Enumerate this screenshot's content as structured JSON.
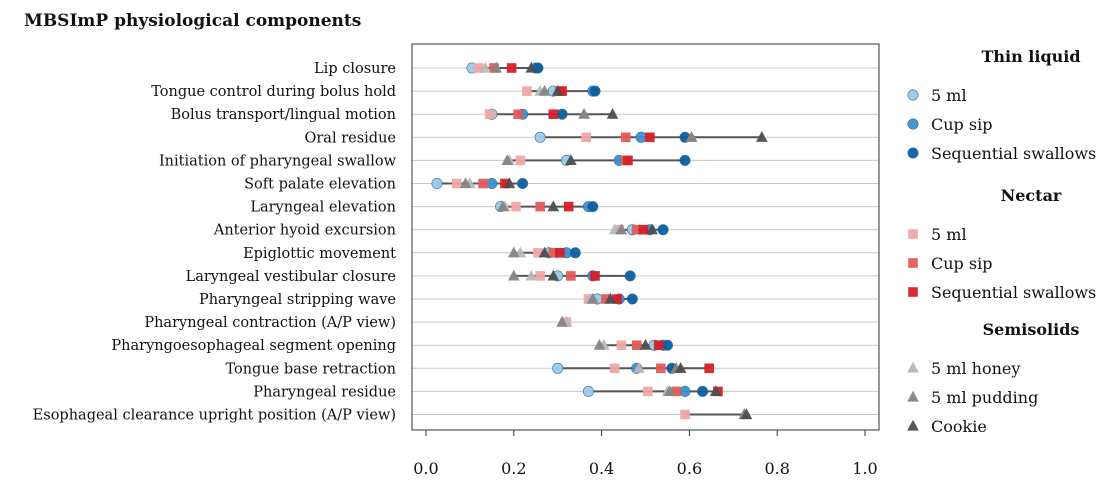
{
  "chart_data": {
    "type": "scatter",
    "title": "MBSImP physiological components",
    "xlim": [
      0.0,
      1.0
    ],
    "x_ticks": [
      "0.0",
      "0.2",
      "0.4",
      "0.6",
      "0.8",
      "1.0"
    ],
    "grid": "horizontal",
    "legend_position": "right",
    "categories": [
      "Lip closure",
      "Tongue control during bolus hold",
      "Bolus transport/lingual motion",
      "Oral residue",
      "Initiation of pharyngeal swallow",
      "Soft palate elevation",
      "Laryngeal elevation",
      "Anterior hyoid excursion",
      "Epiglottic movement",
      "Laryngeal vestibular closure",
      "Pharyngeal stripping wave",
      "Pharyngeal contraction (A/P view)",
      "Pharyngoesophageal segment opening",
      "Tongue base retraction",
      "Pharyngeal residue",
      "Esophageal clearance upright position (A/P view)"
    ],
    "legend_groups": [
      {
        "title": "Thin liquid",
        "entries": [
          "5 ml",
          "Cup sip",
          "Sequential swallows"
        ]
      },
      {
        "title": "Nectar",
        "entries": [
          "5 ml",
          "Cup sip",
          "Sequential swallows"
        ]
      },
      {
        "title": "Semisolids",
        "entries": [
          "5 ml honey",
          "5 ml pudding",
          "Cookie"
        ]
      }
    ],
    "series": [
      {
        "group": "Thin liquid",
        "label": "5 ml",
        "marker": "circle",
        "color": "#9ccbe8",
        "values": [
          0.105,
          0.29,
          0.15,
          0.26,
          0.32,
          0.025,
          0.17,
          0.47,
          0.28,
          0.3,
          0.39,
          null,
          0.52,
          0.3,
          0.37,
          null
        ]
      },
      {
        "group": "Thin liquid",
        "label": "Cup sip",
        "marker": "circle",
        "color": "#3a92cf",
        "values": [
          0.25,
          0.38,
          0.22,
          0.49,
          0.44,
          0.15,
          0.37,
          0.51,
          0.32,
          0.38,
          0.44,
          null,
          0.54,
          0.48,
          0.59,
          null
        ]
      },
      {
        "group": "Thin liquid",
        "label": "Sequential swallows",
        "marker": "circle",
        "color": "#0b5ea0",
        "values": [
          0.255,
          0.385,
          0.31,
          0.59,
          0.59,
          0.22,
          0.38,
          0.54,
          0.34,
          0.465,
          0.47,
          null,
          0.55,
          0.56,
          0.63,
          null
        ]
      },
      {
        "group": "Nectar",
        "label": "5 ml",
        "marker": "square",
        "color": "#f0a6a6",
        "values": [
          0.12,
          0.23,
          0.145,
          0.365,
          0.215,
          0.07,
          0.205,
          0.44,
          0.255,
          0.26,
          0.37,
          0.32,
          0.445,
          0.43,
          0.505,
          0.59
        ]
      },
      {
        "group": "Nectar",
        "label": "Cup sip",
        "marker": "square",
        "color": "#e45a5a",
        "values": [
          0.155,
          0.305,
          0.21,
          0.455,
          0.455,
          0.13,
          0.26,
          0.48,
          0.29,
          0.33,
          0.41,
          null,
          0.48,
          0.535,
          0.57,
          null
        ]
      },
      {
        "group": "Nectar",
        "label": "Sequential swallows",
        "marker": "square",
        "color": "#d51f26",
        "values": [
          0.195,
          0.31,
          0.29,
          0.51,
          0.46,
          0.18,
          0.325,
          0.495,
          0.305,
          0.385,
          0.435,
          null,
          0.53,
          0.645,
          0.665,
          null
        ]
      },
      {
        "group": "Semisolids",
        "label": "5 ml honey",
        "marker": "triangle",
        "color": "#b8b8b8",
        "values": [
          0.135,
          0.26,
          0.36,
          0.605,
          0.19,
          0.1,
          0.18,
          0.43,
          0.215,
          0.24,
          0.375,
          0.32,
          0.405,
          0.485,
          0.55,
          0.725
        ]
      },
      {
        "group": "Semisolids",
        "label": "5 ml pudding",
        "marker": "triangle",
        "color": "#858585",
        "values": [
          0.16,
          0.27,
          0.36,
          0.605,
          0.185,
          0.09,
          0.175,
          0.445,
          0.2,
          0.2,
          0.38,
          0.31,
          0.395,
          0.57,
          0.555,
          0.725
        ]
      },
      {
        "group": "Semisolids",
        "label": "Cookie",
        "marker": "triangle",
        "color": "#4d4d4d",
        "values": [
          0.24,
          0.3,
          0.425,
          0.765,
          0.33,
          0.19,
          0.29,
          0.515,
          0.27,
          0.29,
          0.42,
          null,
          0.5,
          0.58,
          0.66,
          0.73
        ]
      }
    ]
  }
}
